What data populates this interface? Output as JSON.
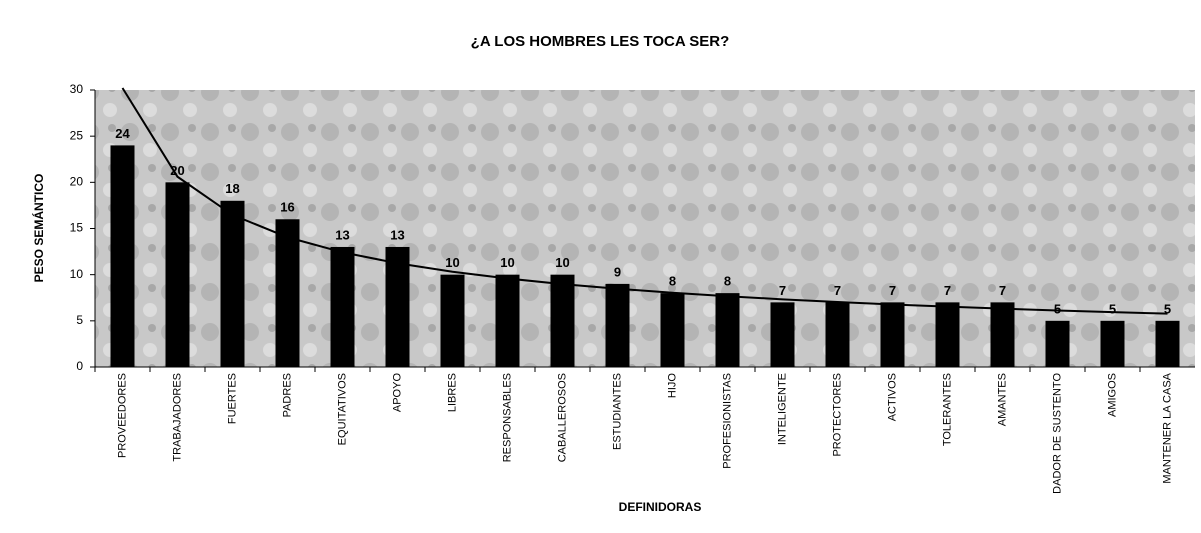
{
  "chart_data": {
    "type": "bar",
    "title": "¿A LOS HOMBRES LES TOCA SER?",
    "x_label": "DEFINIDORAS",
    "y_label": "PESO SEMÁNTICO",
    "categories": [
      "PROVEEDORES",
      "TRABAJADORES",
      "FUERTES",
      "PADRES",
      "EQUITATIVOS",
      "APOYO",
      "LIBRES",
      "RESPONSABLES",
      "CABALLEROSOS",
      "ESTUDIANTES",
      "HIJO",
      "PROFESIONISTAS",
      "INTELIGENTE",
      "PROTECTORES",
      "ACTIVOS",
      "TOLERANTES",
      "AMANTES",
      "DADOR DE SUSTENTO",
      "AMIGOS",
      "MANTENER LA CASA"
    ],
    "values": [
      24,
      20,
      18,
      16,
      13,
      13,
      10,
      10,
      10,
      9,
      8,
      8,
      7,
      7,
      7,
      7,
      7,
      5,
      5,
      5
    ],
    "color": "#000000",
    "ylim": [
      0,
      30
    ],
    "yticks": [
      0,
      5,
      10,
      15,
      20,
      25,
      30
    ],
    "trendline": "power"
  }
}
